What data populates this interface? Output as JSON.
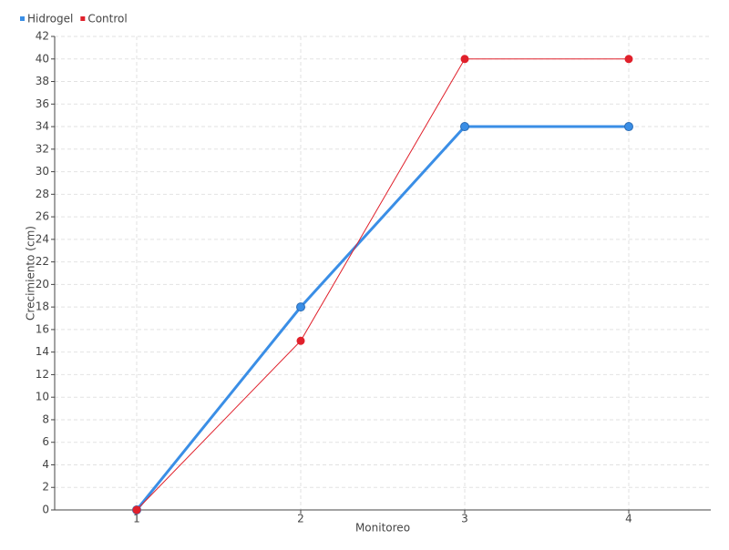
{
  "chart_data": {
    "type": "line",
    "x_label": "Monitoreo",
    "y_label": "Crecimiento (cm)",
    "categories": [
      "1",
      "2",
      "3",
      "4"
    ],
    "series": [
      {
        "name": "Hidrogel",
        "color": "#3a8ee6",
        "values": [
          0,
          18,
          34,
          34
        ]
      },
      {
        "name": "Control",
        "color": "#e0202b",
        "values": [
          0,
          15,
          40,
          40
        ]
      }
    ],
    "ylim": [
      0,
      42
    ],
    "yticks": [
      0,
      2,
      4,
      6,
      8,
      10,
      12,
      14,
      16,
      18,
      20,
      22,
      24,
      26,
      28,
      30,
      32,
      34,
      36,
      38,
      40,
      42
    ],
    "grid": true,
    "legend": "top-left"
  }
}
